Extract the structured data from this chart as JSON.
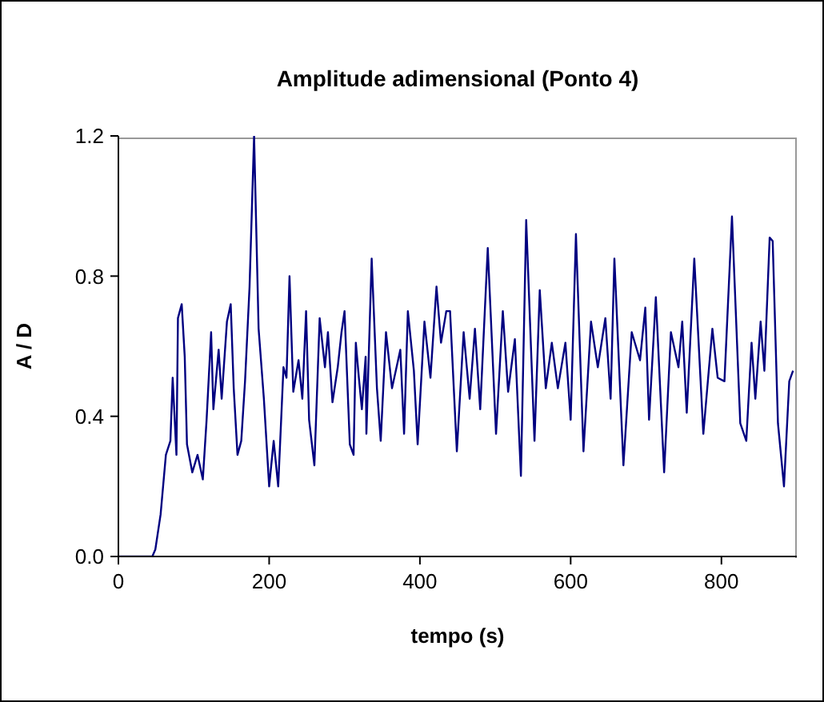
{
  "chart_data": {
    "type": "line",
    "title": "Amplitude adimensional (Ponto 4)",
    "xlabel": "tempo (s)",
    "ylabel": "A / D",
    "x": [
      0,
      45,
      49,
      56,
      63,
      69,
      72,
      77,
      79,
      84,
      88,
      91,
      98,
      105,
      112,
      117,
      123,
      126,
      133,
      137,
      144,
      149,
      153,
      158,
      163,
      168,
      174,
      180,
      186,
      193,
      200,
      206,
      212,
      219,
      223,
      227,
      232,
      239,
      244,
      249,
      253,
      260,
      267,
      274,
      278,
      284,
      291,
      296,
      300,
      307,
      312,
      315,
      319,
      323,
      328,
      329,
      336,
      343,
      348,
      355,
      363,
      374,
      379,
      384,
      392,
      397,
      406,
      414,
      422,
      428,
      435,
      440,
      449,
      458,
      466,
      473,
      480,
      490,
      501,
      510,
      517,
      526,
      534,
      541,
      552,
      559,
      567,
      575,
      583,
      593,
      600,
      607,
      617,
      627,
      636,
      646,
      653,
      658,
      670,
      681,
      692,
      699,
      704,
      713,
      724,
      733,
      743,
      748,
      754,
      764,
      776,
      788,
      795,
      804,
      814,
      825,
      833,
      840,
      845,
      852,
      857,
      864,
      868,
      875,
      883,
      890,
      895
    ],
    "series": [
      {
        "color": "#000080",
        "values": [
          0,
          0,
          0.02,
          0.12,
          0.29,
          0.33,
          0.51,
          0.29,
          0.68,
          0.72,
          0.57,
          0.32,
          0.24,
          0.29,
          0.22,
          0.39,
          0.64,
          0.42,
          0.59,
          0.45,
          0.67,
          0.72,
          0.48,
          0.29,
          0.33,
          0.5,
          0.77,
          1.2,
          0.65,
          0.45,
          0.2,
          0.33,
          0.2,
          0.54,
          0.51,
          0.8,
          0.47,
          0.56,
          0.45,
          0.7,
          0.39,
          0.26,
          0.68,
          0.54,
          0.64,
          0.44,
          0.54,
          0.64,
          0.7,
          0.32,
          0.29,
          0.61,
          0.51,
          0.42,
          0.57,
          0.35,
          0.85,
          0.48,
          0.33,
          0.64,
          0.48,
          0.59,
          0.35,
          0.7,
          0.53,
          0.32,
          0.67,
          0.51,
          0.77,
          0.61,
          0.7,
          0.7,
          0.3,
          0.64,
          0.45,
          0.65,
          0.42,
          0.88,
          0.35,
          0.7,
          0.47,
          0.62,
          0.23,
          0.96,
          0.33,
          0.76,
          0.48,
          0.61,
          0.48,
          0.61,
          0.39,
          0.92,
          0.3,
          0.67,
          0.54,
          0.68,
          0.45,
          0.85,
          0.26,
          0.64,
          0.56,
          0.71,
          0.39,
          0.74,
          0.24,
          0.64,
          0.54,
          0.67,
          0.41,
          0.85,
          0.35,
          0.65,
          0.51,
          0.5,
          0.97,
          0.38,
          0.33,
          0.61,
          0.45,
          0.67,
          0.53,
          0.91,
          0.9,
          0.38,
          0.2,
          0.5,
          0.53
        ]
      }
    ],
    "xlim": [
      0,
      900
    ],
    "xticks": [
      0,
      200,
      400,
      600,
      800
    ],
    "ylim": [
      0,
      1.2
    ],
    "yticks": [
      {
        "value": 0,
        "label": "0.0"
      },
      0.4,
      0.8,
      1.2
    ],
    "grid": false,
    "legend": false,
    "marker": "none",
    "line_style": "solid"
  }
}
